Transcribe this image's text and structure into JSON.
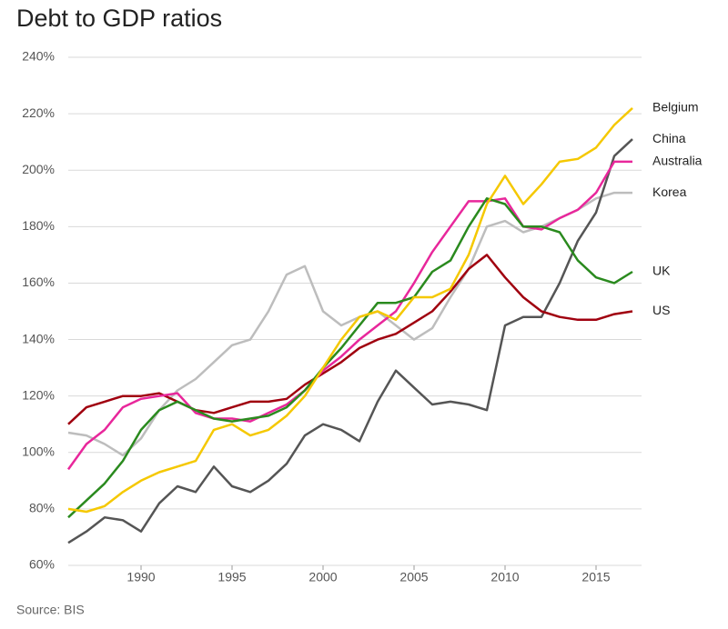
{
  "chart_data": {
    "type": "line",
    "title": "Debt to GDP ratios",
    "source": "Source: BIS",
    "x": [
      1986,
      1987,
      1988,
      1989,
      1990,
      1991,
      1992,
      1993,
      1994,
      1995,
      1996,
      1997,
      1998,
      1999,
      2000,
      2001,
      2002,
      2003,
      2004,
      2005,
      2006,
      2007,
      2008,
      2009,
      2010,
      2011,
      2012,
      2013,
      2014,
      2015,
      2016,
      2017
    ],
    "xlim": [
      1986,
      2017.5
    ],
    "xticks": [
      1990,
      1995,
      2000,
      2005,
      2010,
      2015
    ],
    "ylim": [
      60,
      240
    ],
    "yticks": [
      {
        "value": 60,
        "label": "60%"
      },
      {
        "value": 80,
        "label": "80%"
      },
      {
        "value": 100,
        "label": "100%"
      },
      {
        "value": 120,
        "label": "120%"
      },
      {
        "value": 140,
        "label": "140%"
      },
      {
        "value": 160,
        "label": "160%"
      },
      {
        "value": 180,
        "label": "180%"
      },
      {
        "value": 200,
        "label": "200%"
      },
      {
        "value": 220,
        "label": "220%"
      },
      {
        "value": 240,
        "label": "240%"
      }
    ],
    "grid": true,
    "series": [
      {
        "name": "Korea",
        "color": "#bdbdbd",
        "values": [
          107,
          106,
          103,
          99,
          105,
          115,
          122,
          126,
          132,
          138,
          140,
          150,
          163,
          166,
          150,
          145,
          148,
          150,
          145,
          140,
          144,
          155,
          165,
          180,
          182,
          178,
          180,
          183,
          186,
          190,
          192,
          192
        ]
      },
      {
        "name": "China",
        "color": "#555555",
        "values": [
          68,
          72,
          77,
          76,
          72,
          82,
          88,
          86,
          95,
          88,
          86,
          90,
          96,
          106,
          110,
          108,
          104,
          118,
          129,
          123,
          117,
          118,
          117,
          115,
          145,
          148,
          148,
          160,
          175,
          185,
          205,
          211
        ]
      },
      {
        "name": "US",
        "color": "#a0000f",
        "values": [
          110,
          116,
          118,
          120,
          120,
          121,
          118,
          115,
          114,
          116,
          118,
          118,
          119,
          124,
          128,
          132,
          137,
          140,
          142,
          146,
          150,
          157,
          165,
          170,
          162,
          155,
          150,
          148,
          147,
          147,
          149,
          150
        ]
      },
      {
        "name": "Australia",
        "color": "#e8279b",
        "values": [
          94,
          103,
          108,
          116,
          119,
          120,
          121,
          114,
          112,
          112,
          111,
          114,
          117,
          122,
          129,
          134,
          140,
          145,
          150,
          160,
          171,
          180,
          189,
          189,
          190,
          180,
          179,
          183,
          186,
          192,
          203,
          203
        ]
      },
      {
        "name": "UK",
        "color": "#2a8a1e",
        "values": [
          77,
          83,
          89,
          97,
          108,
          115,
          118,
          115,
          112,
          111,
          112,
          113,
          116,
          122,
          130,
          137,
          145,
          153,
          153,
          155,
          164,
          168,
          180,
          190,
          188,
          180,
          180,
          178,
          168,
          162,
          160,
          164
        ]
      },
      {
        "name": "Belgium",
        "color": "#f5c800",
        "values": [
          80,
          79,
          81,
          86,
          90,
          93,
          95,
          97,
          108,
          110,
          106,
          108,
          113,
          120,
          130,
          140,
          148,
          150,
          147,
          155,
          155,
          158,
          170,
          188,
          198,
          188,
          195,
          203,
          204,
          208,
          216,
          222
        ]
      }
    ]
  }
}
